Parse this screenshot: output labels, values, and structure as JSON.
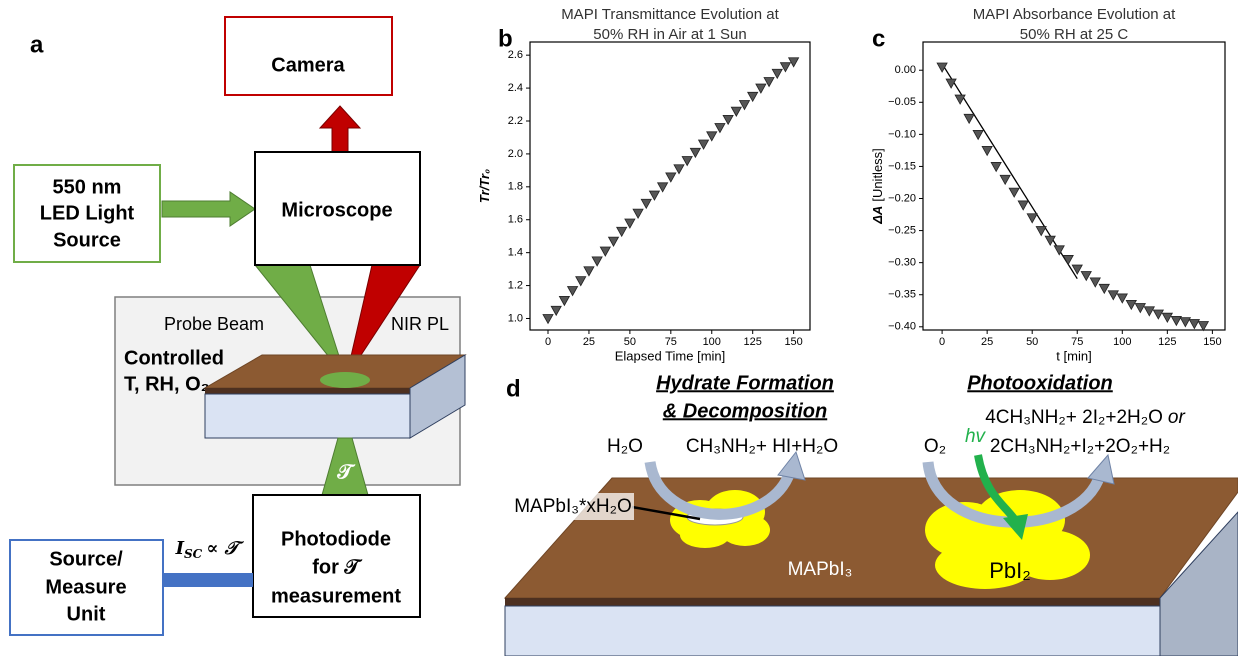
{
  "panels": {
    "a": "a",
    "b": "b",
    "c": "c",
    "d": "d"
  },
  "diagram": {
    "camera": "Camera",
    "light_source": [
      "550 nm",
      "LED Light",
      "Source"
    ],
    "microscope": "Microscope",
    "probe_beam": "Probe Beam",
    "nir_pl": "NIR PL",
    "chamber": [
      "Controlled",
      "T, RH, O₂"
    ],
    "transmittance_symbol": "𝒯",
    "isc": {
      "symbol": "I",
      "subscript": "SC",
      "relation": "∝ 𝒯"
    },
    "source_measure": [
      "Source/",
      "Measure",
      "Unit"
    ],
    "photodiode": [
      "Photodiode",
      "for 𝒯",
      "measurement"
    ],
    "hydrate_title": [
      "Hydrate Formation",
      "& Decomposition"
    ],
    "photooxidation_title": "Photooxidation",
    "hydrate_reactant": "H₂O",
    "hydrate_products": "CH₃NH₂+ HI+H₂O",
    "oxidation_reactant": "O₂",
    "light": "hv",
    "oxidation_products_1": "4CH₃NH₂+ 2I₂+2H₂O",
    "oxidation_or": "or",
    "oxidation_products_2": "2CH₃NH₂+I₂+2O₂+H₂",
    "hydrate_label": "MAPbI₃*xH₂O",
    "film": "MAPbI₃",
    "product": "PbI₂"
  },
  "chart_data": [
    {
      "type": "scatter",
      "title": [
        "MAPI Transmittance Evolution at",
        "50% RH in Air at 1 Sun"
      ],
      "xlabel": "Elapsed Time [min]",
      "ylabel": "Tr/Tr₀",
      "x": [
        0,
        5,
        10,
        15,
        20,
        25,
        30,
        35,
        40,
        45,
        50,
        55,
        60,
        65,
        70,
        75,
        80,
        85,
        90,
        95,
        100,
        105,
        110,
        115,
        120,
        125,
        130,
        135,
        140,
        145,
        150
      ],
      "values": [
        1.0,
        1.05,
        1.11,
        1.17,
        1.23,
        1.29,
        1.35,
        1.41,
        1.47,
        1.53,
        1.58,
        1.64,
        1.7,
        1.75,
        1.8,
        1.86,
        1.91,
        1.96,
        2.01,
        2.06,
        2.11,
        2.16,
        2.21,
        2.26,
        2.3,
        2.35,
        2.4,
        2.44,
        2.49,
        2.53,
        2.56
      ],
      "color": "#555555",
      "xlim": [
        -11,
        160
      ],
      "ylim": [
        0.93,
        2.68
      ],
      "xticks": [
        0,
        25,
        50,
        75,
        100,
        125,
        150
      ],
      "yticks": [
        {
          "value": 1.0,
          "label": "1.0"
        },
        1.2,
        1.4,
        1.6,
        1.8,
        {
          "value": 2.0,
          "label": "2.0"
        },
        2.2,
        2.4,
        2.6
      ]
    },
    {
      "type": "scatter",
      "title": [
        "MAPI Absorbance Evolution at",
        "50% RH at 25 C"
      ],
      "xlabel": "t [min]",
      "ylabel": "ΔA",
      "ylabel_unit": "[Unitless]",
      "x": [
        0,
        5,
        10,
        15,
        20,
        25,
        30,
        35,
        40,
        45,
        50,
        55,
        60,
        65,
        70,
        75,
        80,
        85,
        90,
        95,
        100,
        105,
        110,
        115,
        120,
        125,
        130,
        135,
        140,
        145
      ],
      "values": [
        0.005,
        -0.02,
        -0.045,
        -0.075,
        -0.1,
        -0.125,
        -0.15,
        -0.17,
        -0.19,
        -0.21,
        -0.23,
        -0.25,
        -0.265,
        -0.28,
        -0.295,
        -0.31,
        -0.32,
        -0.33,
        -0.34,
        -0.35,
        -0.355,
        -0.365,
        -0.37,
        -0.375,
        -0.38,
        -0.385,
        -0.39,
        -0.392,
        -0.395,
        -0.398
      ],
      "color": "#555555",
      "fit": {
        "x": [
          0,
          75
        ],
        "values": [
          0.01,
          -0.325
        ],
        "color": "#000000"
      },
      "xlim": [
        -10.6,
        157
      ],
      "ylim": [
        -0.405,
        0.044
      ],
      "xticks": [
        0,
        25,
        50,
        75,
        100,
        125,
        150
      ],
      "yticks": [
        {
          "value": 0,
          "label": "0.00"
        },
        {
          "value": -0.05,
          "label": "−0.05"
        },
        {
          "value": -0.1,
          "label": "−0.10"
        },
        {
          "value": -0.15,
          "label": "−0.15"
        },
        {
          "value": -0.2,
          "label": "−0.20"
        },
        {
          "value": -0.25,
          "label": "−0.25"
        },
        {
          "value": -0.3,
          "label": "−0.30"
        },
        {
          "value": -0.35,
          "label": "−0.35"
        },
        {
          "value": -0.4,
          "label": "−0.40"
        }
      ]
    }
  ]
}
